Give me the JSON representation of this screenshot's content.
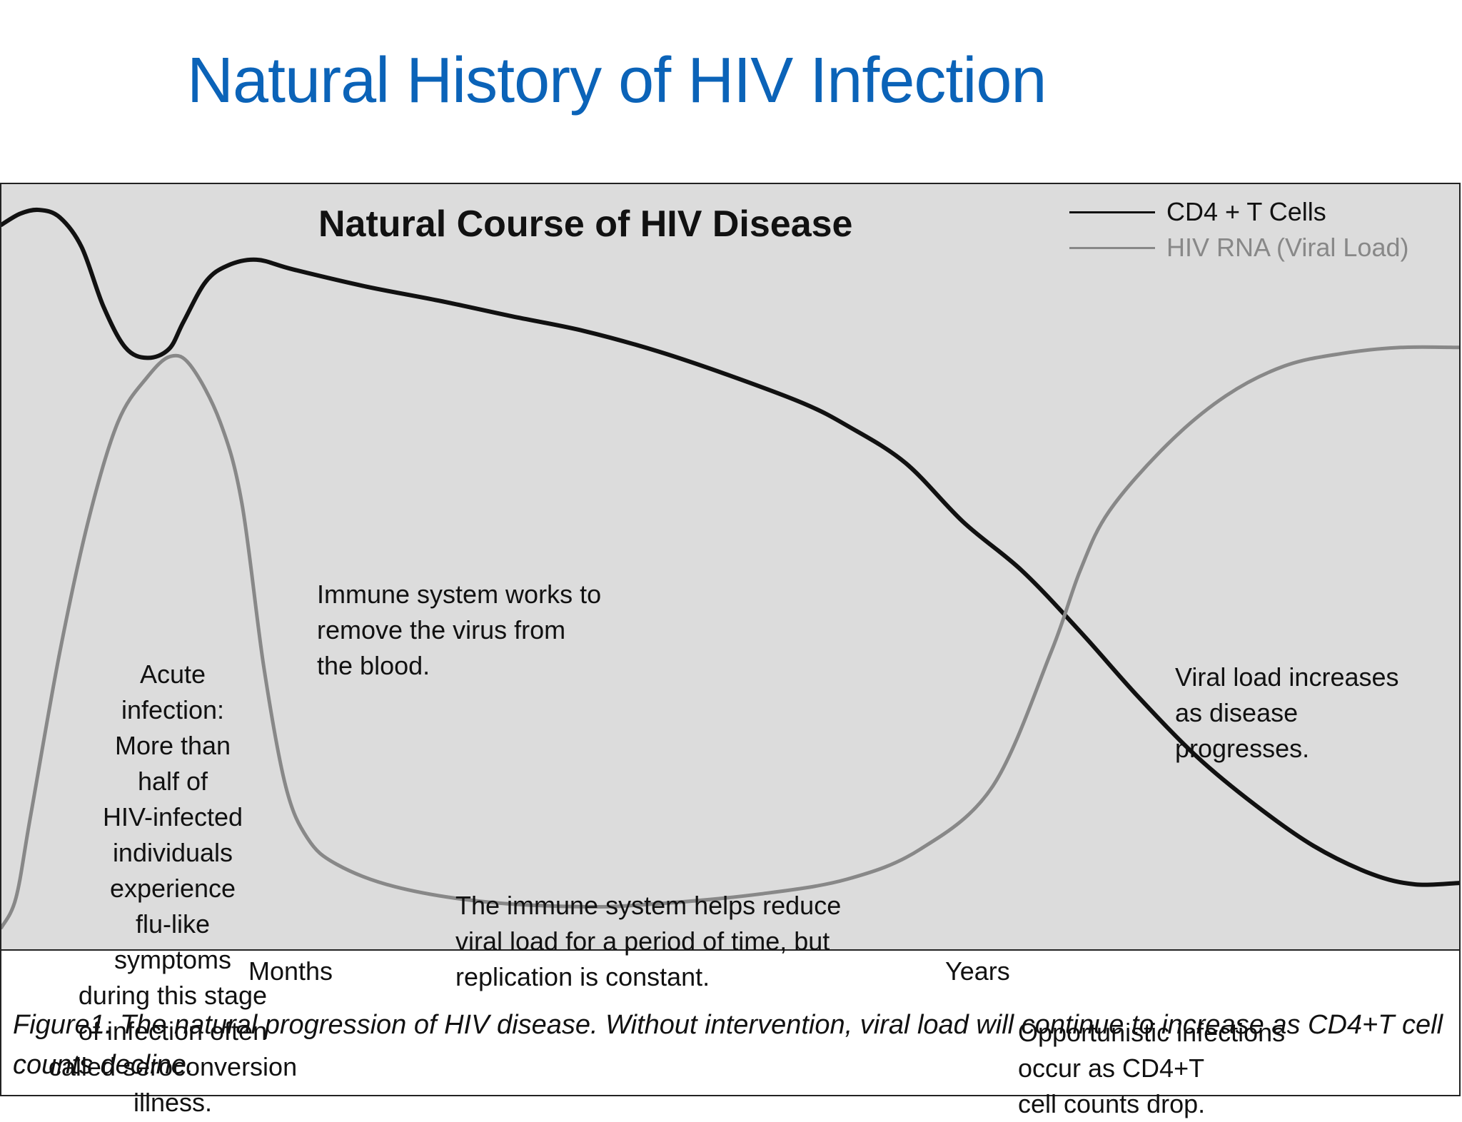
{
  "slide": {
    "title": "Natural History of HIV Infection"
  },
  "chart_data": {
    "type": "line",
    "title": "Natural Course of HIV Disease",
    "xlabel": "",
    "ylabel": "",
    "x_axis_labels": [
      "Months",
      "Years"
    ],
    "xlim": [
      0,
      100
    ],
    "ylim": [
      0,
      100
    ],
    "grid": false,
    "legend_position": "top-right",
    "series": [
      {
        "name": "CD4 + T Cells",
        "color": "#111111",
        "points": [
          [
            0,
            95.5
          ],
          [
            1.3,
            97
          ],
          [
            2.6,
            97.5
          ],
          [
            4,
            96.5
          ],
          [
            5.5,
            92.5
          ],
          [
            7,
            84.5
          ],
          [
            8.5,
            79
          ],
          [
            10,
            77.6
          ],
          [
            11.5,
            78.8
          ],
          [
            12.5,
            82.5
          ],
          [
            14,
            87.8
          ],
          [
            15.5,
            90
          ],
          [
            17.5,
            90.8
          ],
          [
            20,
            89.5
          ],
          [
            25,
            87.2
          ],
          [
            30,
            85.3
          ],
          [
            35,
            83.2
          ],
          [
            40,
            81.2
          ],
          [
            45,
            78.5
          ],
          [
            50,
            75.2
          ],
          [
            55,
            71.5
          ],
          [
            58,
            68.5
          ],
          [
            62,
            63.5
          ],
          [
            66,
            55.5
          ],
          [
            70,
            49
          ],
          [
            74,
            40.8
          ],
          [
            78,
            32
          ],
          [
            82,
            24
          ],
          [
            86,
            17.5
          ],
          [
            90,
            12
          ],
          [
            94,
            8.2
          ],
          [
            97,
            6.8
          ],
          [
            100,
            7
          ]
        ]
      },
      {
        "name": "HIV RNA (Viral Load)",
        "color": "#888888",
        "points": [
          [
            0,
            1
          ],
          [
            1,
            5
          ],
          [
            2,
            16
          ],
          [
            4,
            38
          ],
          [
            6,
            56
          ],
          [
            8,
            69
          ],
          [
            10,
            75
          ],
          [
            11.6,
            77.8
          ],
          [
            13,
            76.5
          ],
          [
            15,
            69
          ],
          [
            16.5,
            58
          ],
          [
            18,
            36
          ],
          [
            19.5,
            20
          ],
          [
            21,
            13
          ],
          [
            23,
            9.5
          ],
          [
            27,
            6.5
          ],
          [
            33,
            4.5
          ],
          [
            40,
            3.8
          ],
          [
            45,
            4.2
          ],
          [
            52,
            5.5
          ],
          [
            58,
            7.5
          ],
          [
            63,
            11.5
          ],
          [
            68,
            20
          ],
          [
            72,
            38
          ],
          [
            74,
            49
          ],
          [
            76,
            57
          ],
          [
            80,
            66
          ],
          [
            84,
            72.5
          ],
          [
            88,
            76.5
          ],
          [
            92,
            78.2
          ],
          [
            96,
            79
          ],
          [
            100,
            79
          ]
        ]
      }
    ],
    "annotations": [
      "Acute\ninfection:\nMore than\nhalf of\nHIV-infected\nindividuals\nexperience\nflu-like\nsymptoms\nduring this stage\nof infection often\ncalled seroconversion\nillness.",
      "Immune system works to\nremove the virus from\nthe blood.",
      "The immune system helps reduce\nviral load for a period of time, but\nreplication is constant.",
      "Viral load increases\nas disease\nprogresses.",
      "Opportunistic infections\noccur as CD4+T\ncell counts drop."
    ],
    "caption": "Figure1. The natural progression of HIV disease. Without intervention, viral load will continue to increase as CD4+T cell counts decline."
  }
}
